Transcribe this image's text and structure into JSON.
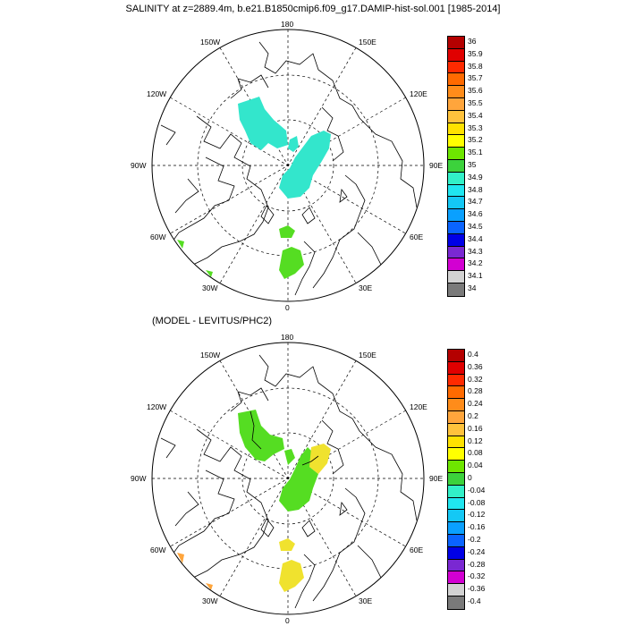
{
  "title": "SALINITY at z=2889.4m, b.e21.B1850cmip6.f09_g17.DAMIP-hist-sol.001 [1985-2014]",
  "subtitle": "(MODEL - LEVITUS/PHC2)",
  "lon_labels": [
    "180",
    "150E",
    "120E",
    "90E",
    "60E",
    "30E",
    "0",
    "30W",
    "60W",
    "90W",
    "120W",
    "150W"
  ],
  "colorbar_top": {
    "labels": [
      "36",
      "35.9",
      "35.8",
      "35.7",
      "35.6",
      "35.5",
      "35.4",
      "35.3",
      "35.2",
      "35.1",
      "35",
      "34.9",
      "34.8",
      "34.7",
      "34.6",
      "34.5",
      "34.4",
      "34.3",
      "34.2",
      "34.1",
      "34"
    ],
    "colors": [
      "#b40000",
      "#e00000",
      "#ff2a00",
      "#ff6a00",
      "#ff8c1a",
      "#ffa53c",
      "#ffc23c",
      "#ffe100",
      "#ffff00",
      "#6ee600",
      "#3cd23c",
      "#32f0c8",
      "#20e6f0",
      "#14c8f5",
      "#0aa0ff",
      "#0a64ff",
      "#0000e6",
      "#7a28d2",
      "#d200d2",
      "#d2d2d2",
      "#7a7a7a"
    ]
  },
  "colorbar_bottom": {
    "labels": [
      "0.4",
      "0.36",
      "0.32",
      "0.28",
      "0.24",
      "0.2",
      "0.16",
      "0.12",
      "0.08",
      "0.04",
      "0",
      "-0.04",
      "-0.08",
      "-0.12",
      "-0.16",
      "-0.2",
      "-0.24",
      "-0.28",
      "-0.32",
      "-0.36",
      "-0.4"
    ],
    "colors": [
      "#b40000",
      "#e00000",
      "#ff2a00",
      "#ff6a00",
      "#ff8c1a",
      "#ffa53c",
      "#ffc23c",
      "#ffe100",
      "#ffff00",
      "#6ee600",
      "#3cd23c",
      "#32f0c8",
      "#20e6f0",
      "#14c8f5",
      "#0aa0ff",
      "#0a64ff",
      "#0000e6",
      "#7a28d2",
      "#d200d2",
      "#d2d2d2",
      "#7a7a7a"
    ]
  },
  "colors": {
    "top_cyan": "#33e6cc",
    "top_green": "#55dd22",
    "bottom_green": "#55dd22",
    "bottom_yellow": "#f0e22e",
    "bottom_orange": "#ffa53c"
  }
}
